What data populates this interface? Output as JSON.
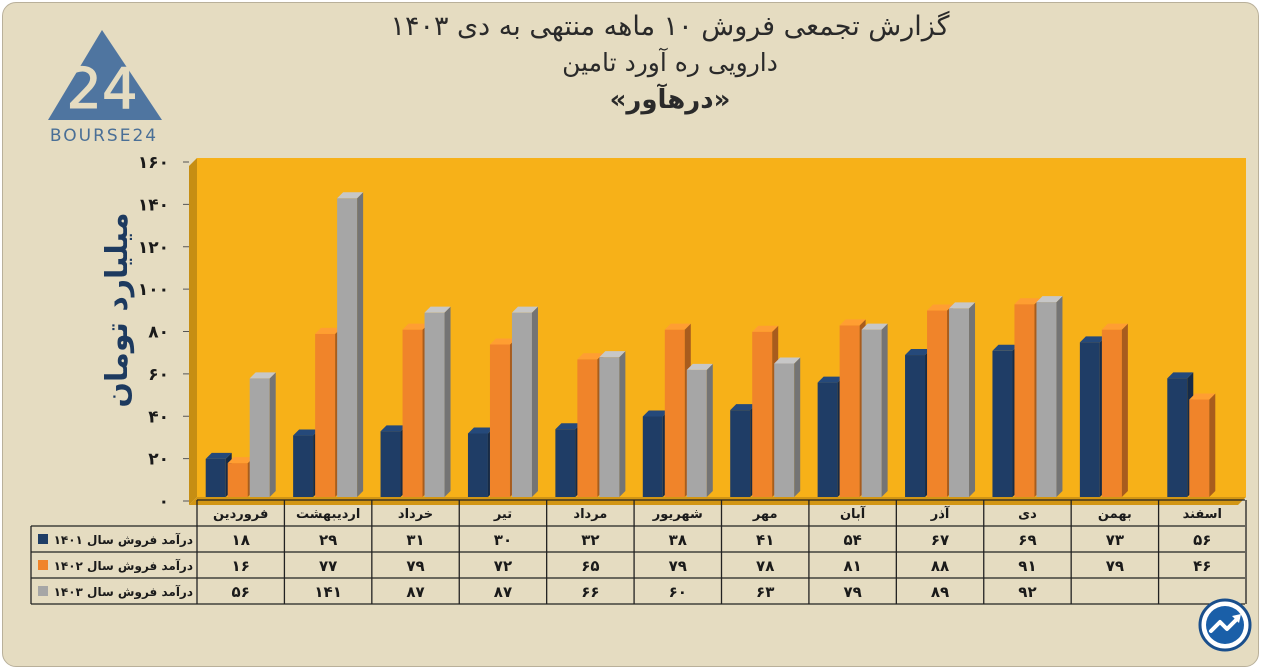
{
  "header": {
    "title_line1": "گزارش تجمعی فروش ۱۰ ماهه منتهی به دی ۱۴۰۳",
    "title_line2": "دارویی ره آورد تامین",
    "title_line3": "«درهآور»"
  },
  "logo": {
    "text": "BOURSE24",
    "mark": "24",
    "icon": "triangle-24-logo"
  },
  "badge": {
    "icon": "trend-arrow-icon"
  },
  "chart_data": {
    "type": "bar",
    "ylabel": "میلیارد تومان",
    "ylim": [
      0,
      160
    ],
    "yticks": [
      0,
      20,
      40,
      60,
      80,
      100,
      120,
      140,
      160
    ],
    "ytick_labels": [
      "۰",
      "۲۰",
      "۴۰",
      "۶۰",
      "۸۰",
      "۱۰۰",
      "۱۲۰",
      "۱۴۰",
      "۱۶۰"
    ],
    "grid": false,
    "categories": [
      "فروردین",
      "اردیبهشت",
      "خرداد",
      "تیر",
      "مرداد",
      "شهریور",
      "مهر",
      "آبان",
      "آذر",
      "دی",
      "بهمن",
      "اسفند"
    ],
    "series": [
      {
        "name": "درآمد فروش سال ۱۴۰۱",
        "color": "#1f3d66",
        "values": [
          18,
          29,
          31,
          30,
          32,
          38,
          41,
          54,
          67,
          69,
          73,
          56
        ],
        "labels": [
          "۱۸",
          "۲۹",
          "۳۱",
          "۳۰",
          "۳۲",
          "۳۸",
          "۴۱",
          "۵۴",
          "۶۷",
          "۶۹",
          "۷۳",
          "۵۶"
        ]
      },
      {
        "name": "درآمد فروش سال ۱۴۰۲",
        "color": "#f0842a",
        "values": [
          16,
          77,
          79,
          72,
          65,
          79,
          78,
          81,
          88,
          91,
          79,
          46
        ],
        "labels": [
          "۱۶",
          "۷۷",
          "۷۹",
          "۷۲",
          "۶۵",
          "۷۹",
          "۷۸",
          "۸۱",
          "۸۸",
          "۹۱",
          "۷۹",
          "۴۶"
        ]
      },
      {
        "name": "درآمد فروش سال ۱۴۰۳",
        "color": "#a6a6a6",
        "values": [
          56,
          141,
          87,
          87,
          66,
          60,
          63,
          79,
          89,
          92,
          null,
          null
        ],
        "labels": [
          "۵۶",
          "۱۴۱",
          "۸۷",
          "۸۷",
          "۶۶",
          "۶۰",
          "۶۳",
          "۷۹",
          "۸۹",
          "۹۲",
          "",
          ""
        ]
      }
    ],
    "plot_background": "#f7b118",
    "frame_background": "#e5dcc1"
  }
}
